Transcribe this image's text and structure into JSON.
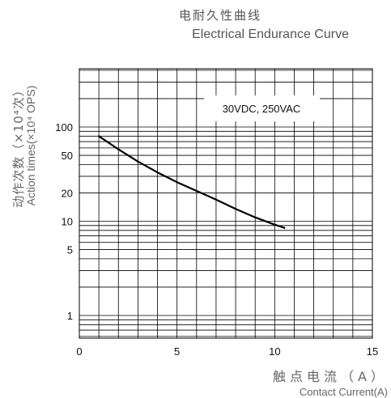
{
  "chart_data": {
    "type": "line",
    "title_cn": "电耐久性曲线",
    "title": "Electrical Endurance Curve",
    "ylabel_cn": "动作次数（×10⁴次）",
    "ylabel": "Action times(×10⁴ OPS)",
    "xlabel_cn": "触点电流（A）",
    "xlabel": "Contact Current(A)",
    "annotation": "30VDC, 250VAC",
    "xlim": [
      0,
      15
    ],
    "x_ticks": [
      0,
      5,
      10,
      15
    ],
    "y_ticks": [
      1,
      5,
      10,
      20,
      50,
      100
    ],
    "y_scale": "log",
    "grid": true,
    "series": [
      {
        "x": [
          1,
          2,
          3,
          4,
          5,
          6,
          7,
          8,
          9,
          10,
          10.5
        ],
        "values": [
          80,
          58,
          43,
          33,
          26,
          21,
          17,
          13.5,
          11,
          9.2,
          8.5
        ]
      }
    ]
  }
}
